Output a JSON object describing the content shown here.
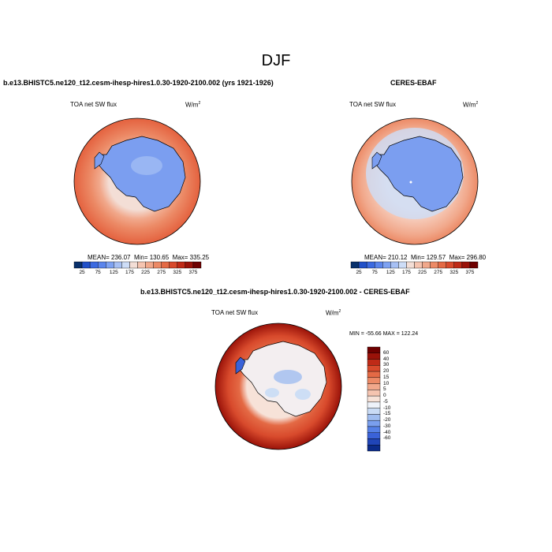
{
  "main_title": "DJF",
  "colors": {
    "colorbar_abs": [
      "#08306b",
      "#2150c8",
      "#3c6ae0",
      "#5b85ec",
      "#7ea2f2",
      "#a7c0f4",
      "#cdddf7",
      "#f3ded6",
      "#f5c4b0",
      "#f1a88b",
      "#ec8a66",
      "#e46a45",
      "#d84a2c",
      "#bf2a17",
      "#9a1209",
      "#6e0000"
    ],
    "colorbar_diff": [
      "#6e0000",
      "#9a1209",
      "#bf2a17",
      "#d84a2c",
      "#e46a45",
      "#ec8a66",
      "#f1a88b",
      "#f5c4b0",
      "#f7e2d8",
      "#eef2fa",
      "#c9dbf5",
      "#a0bdf0",
      "#7a9fee",
      "#5580e6",
      "#3a62d8",
      "#2045b8",
      "#0b2b8a"
    ],
    "land": "#7b9ef0",
    "ocean_edge": "#e2583a"
  },
  "chart_data": [
    {
      "type": "heatmap",
      "projection": "south-polar-stereographic",
      "title": "b.e13.BHISTC5.ne120_t12.cesm-ihesp-hires1.0.30-1920-2100.002 (yrs 1921-1926)",
      "variable_label": "TOA net SW flux",
      "units_label": "W/m",
      "units_superscript": "2",
      "stats": {
        "mean_label": "MEAN= 236.07",
        "min_label": "Min= 130.65",
        "max_label": "Max= 335.25",
        "mean": 236.07,
        "min": 130.65,
        "max": 335.25
      },
      "colorbar_levels": [
        25,
        50,
        75,
        100,
        125,
        150,
        175,
        200,
        225,
        250,
        275,
        300,
        325,
        350,
        375
      ],
      "colorbar_tick_labels": [
        "25",
        "75",
        "125",
        "175",
        "225",
        "275",
        "325",
        "375"
      ]
    },
    {
      "type": "heatmap",
      "projection": "south-polar-stereographic",
      "title": "CERES-EBAF",
      "variable_label": "TOA net SW flux",
      "units_label": "W/m",
      "units_superscript": "2",
      "stats": {
        "mean_label": "MEAN= 210.12",
        "min_label": "Min= 129.57",
        "max_label": "Max= 296.80",
        "mean": 210.12,
        "min": 129.57,
        "max": 296.8
      },
      "colorbar_levels": [
        25,
        50,
        75,
        100,
        125,
        150,
        175,
        200,
        225,
        250,
        275,
        300,
        325,
        350,
        375
      ],
      "colorbar_tick_labels": [
        "25",
        "75",
        "125",
        "175",
        "225",
        "275",
        "325",
        "375"
      ]
    },
    {
      "type": "heatmap",
      "projection": "south-polar-stereographic",
      "title": "b.e13.BHISTC5.ne120_t12.cesm-ihesp-hires1.0.30-1920-2100.002 - CERES-EBAF",
      "variable_label": "TOA net SW flux",
      "units_label": "W/m",
      "units_superscript": "2",
      "stats": {
        "range_label": "MIN = -55.66 MAX = 122.24",
        "min": -55.66,
        "max": 122.24
      },
      "colorbar_levels": [
        60,
        40,
        30,
        20,
        15,
        10,
        5,
        0,
        -5,
        -10,
        -15,
        -20,
        -30,
        -40,
        -60
      ],
      "colorbar_tick_labels": [
        "60",
        "40",
        "30",
        "20",
        "15",
        "10",
        "5",
        "0",
        "-5",
        "-10",
        "-15",
        "-20",
        "-30",
        "-40",
        "-60"
      ]
    }
  ]
}
